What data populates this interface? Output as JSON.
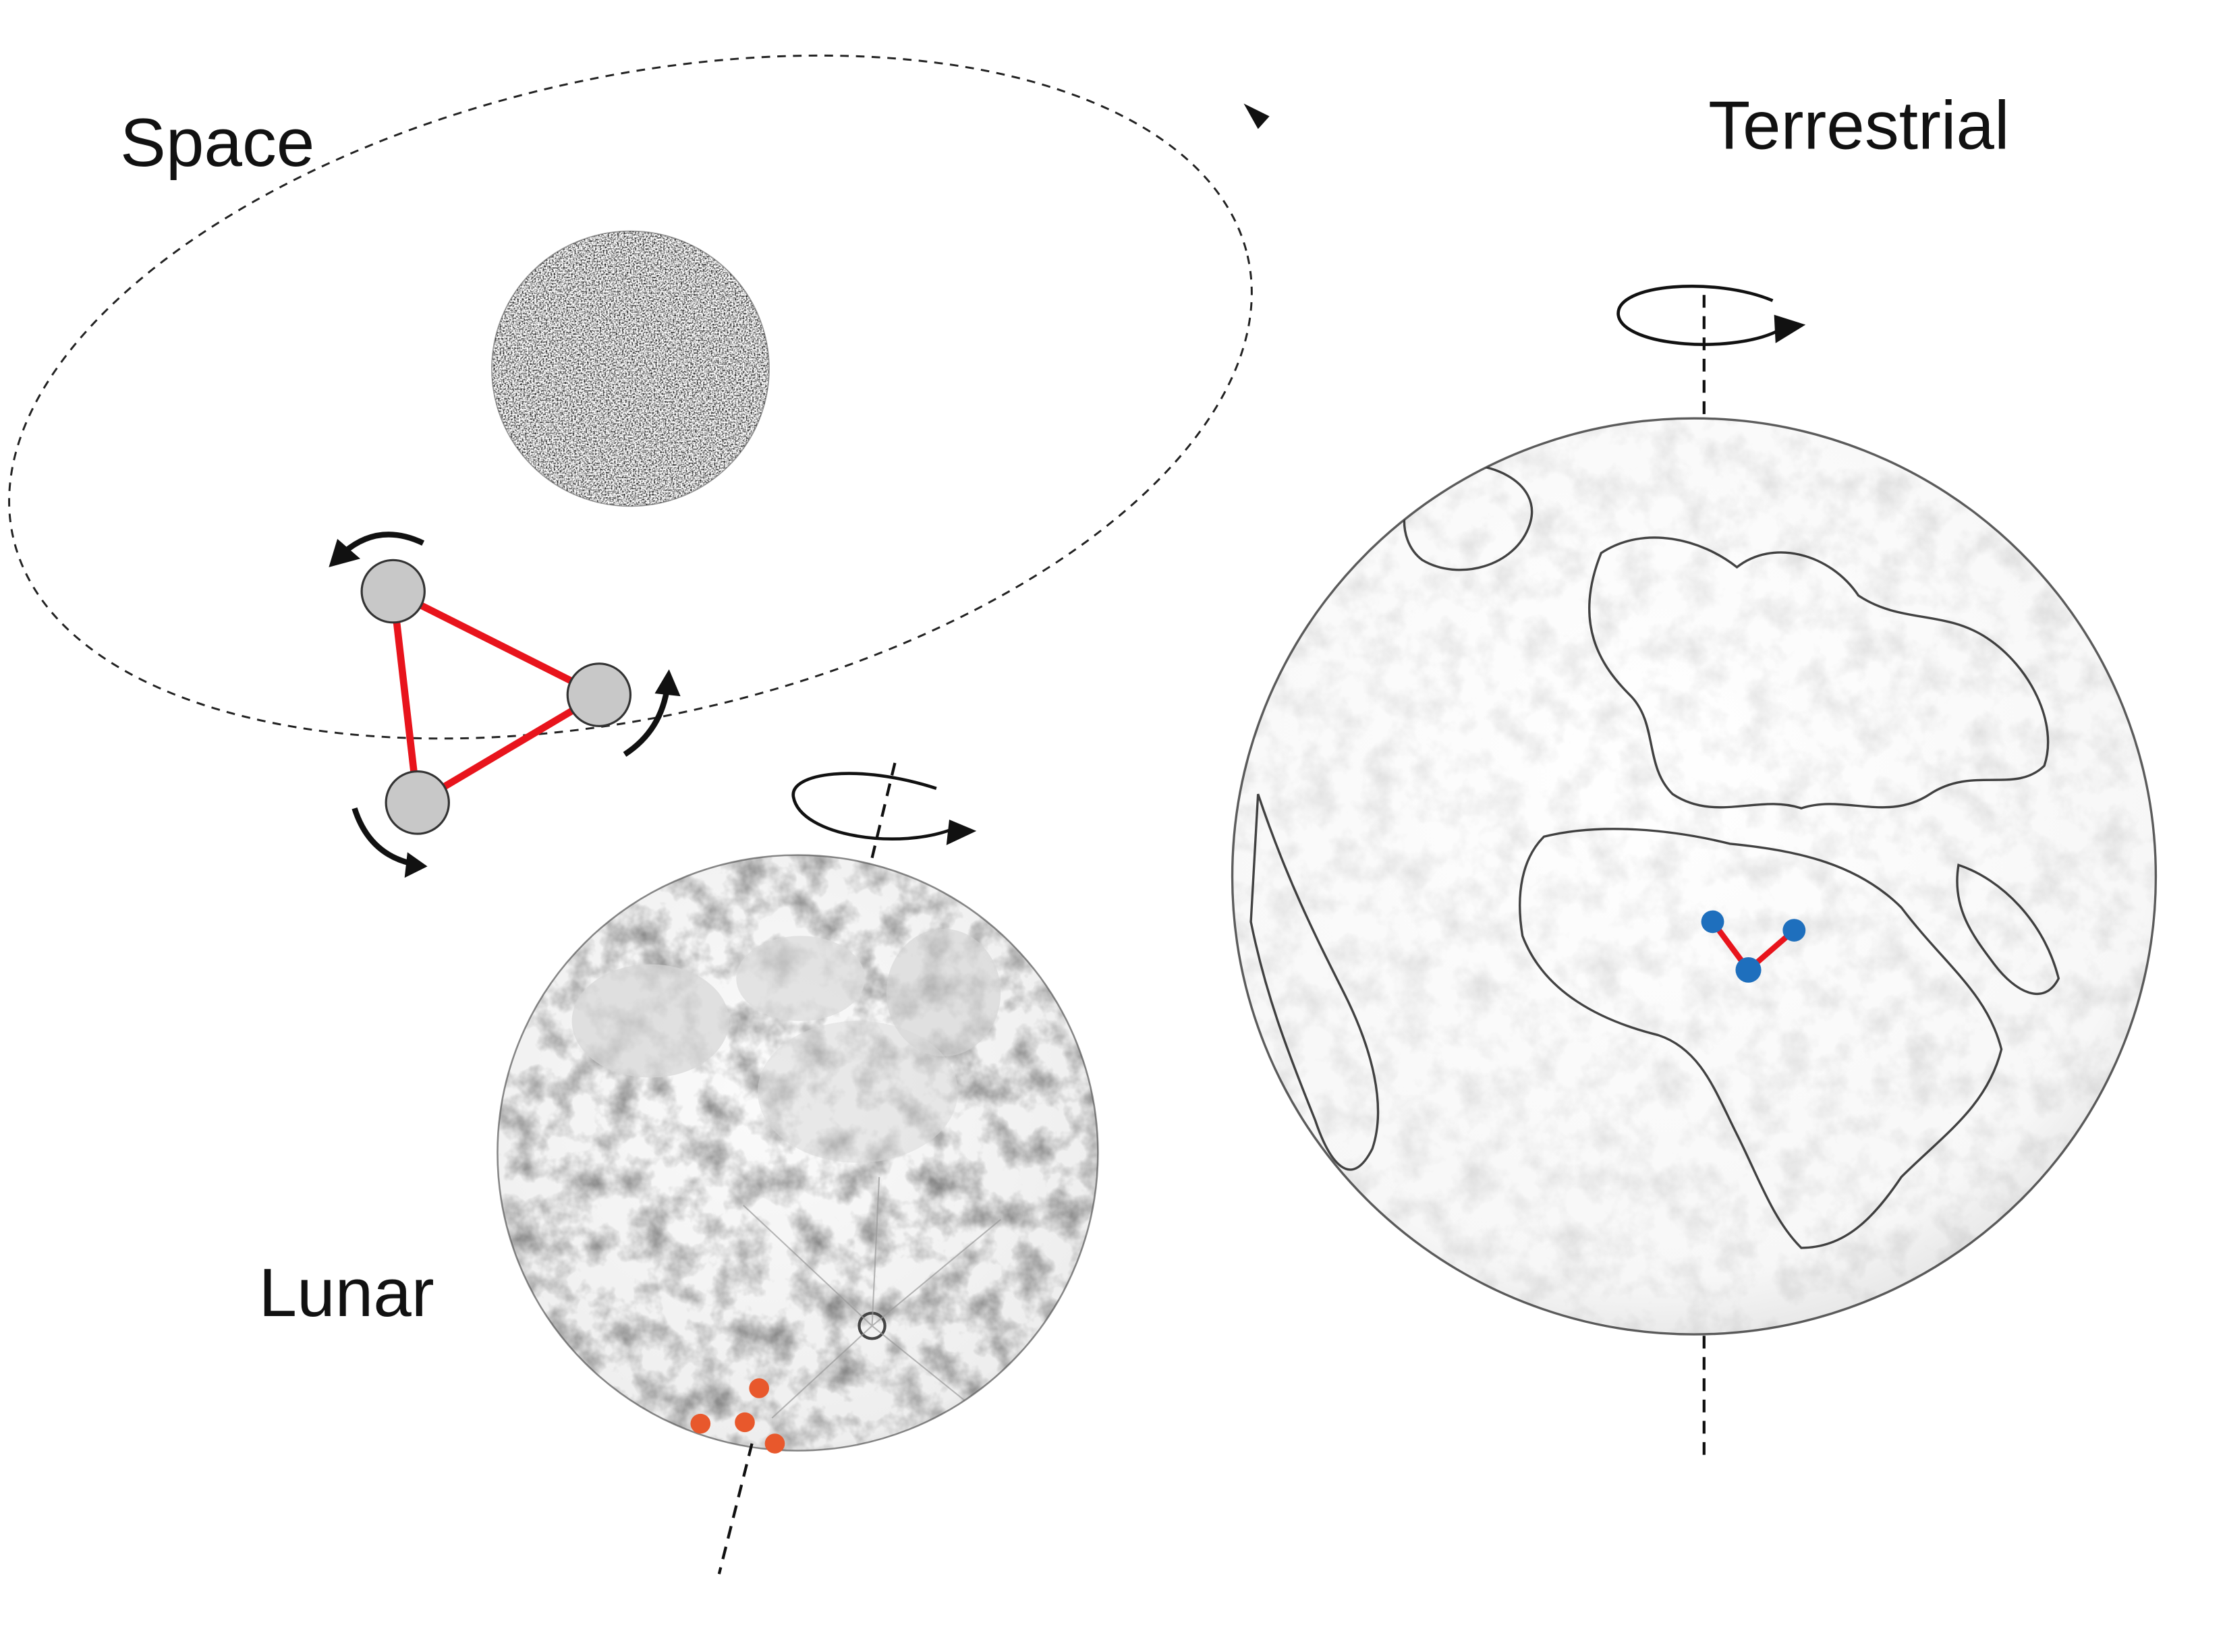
{
  "labels": {
    "space": "Space",
    "lunar": "Lunar",
    "terrestrial": "Terrestrial"
  },
  "colors": {
    "link": "#e8141c",
    "space_node": "#c8c8c8",
    "lunar_node": "#e8582c",
    "terrestrial_node": "#1e6fbd",
    "dashed": "#222222",
    "arrow": "#111111"
  },
  "icons": {
    "rotation_arrows": "curved-arrow-icon",
    "spin_axis": "spin-axis-icon",
    "orbit_arrow": "arrowhead-icon"
  }
}
